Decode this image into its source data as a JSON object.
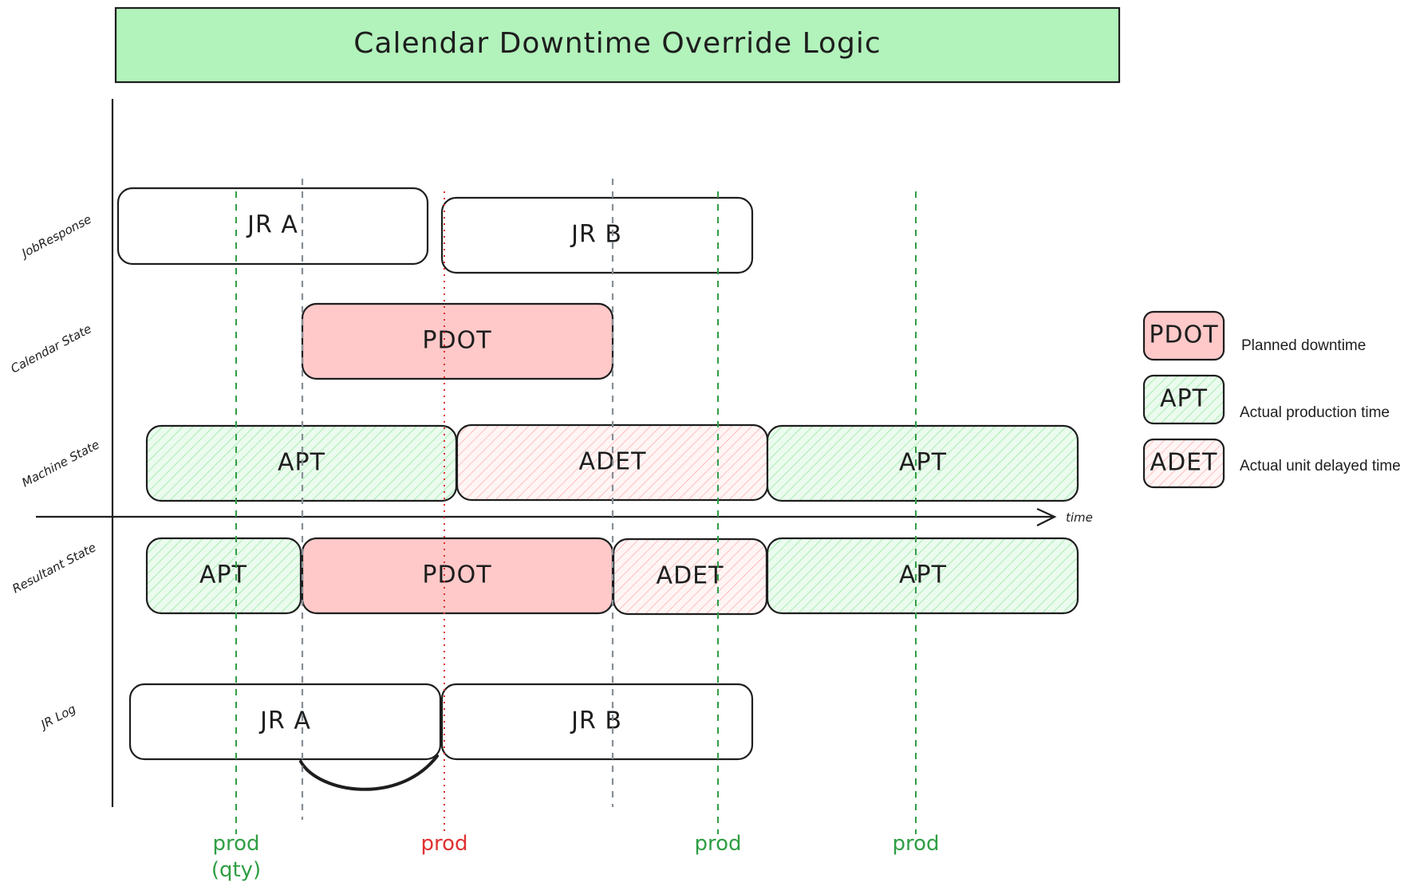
{
  "title": "Calendar Downtime Override Logic",
  "colors": {
    "title_bg": "#b2f2bb",
    "pdot_fill": "#ffc9c9",
    "apt_hatch": "#8ce99a",
    "apt_bg": "#ebfbee",
    "adet_hatch": "#ffa8a8",
    "adet_bg": "#fff5f5",
    "prod_green": "#2f9e44",
    "prod_red": "#e03131",
    "guide_gray": "#868e96"
  },
  "lanes": {
    "job_response": "JobResponse",
    "calendar_state": "Calendar State",
    "machine_state": "Machine State",
    "resultant_state": "Resultant State",
    "jr_log": "JR Log"
  },
  "axis": {
    "time_label": "time"
  },
  "boxes": {
    "jr_a": "JR A",
    "jr_b": "JR B",
    "cal_pdot": "PDOT",
    "m_apt1": "APT",
    "m_adet": "ADET",
    "m_apt2": "APT",
    "r_apt1": "APT",
    "r_pdot": "PDOT",
    "r_adet": "ADET",
    "r_apt2": "APT",
    "log_jr_a": "JR A",
    "log_jr_b": "JR B"
  },
  "prod_markers": {
    "m1_line1": "prod",
    "m1_line2": "(qty)",
    "m2": "prod",
    "m3": "prod",
    "m4": "prod"
  },
  "legend": [
    {
      "code": "PDOT",
      "text": "Planned downtime"
    },
    {
      "code": "APT",
      "text": "Actual production time"
    },
    {
      "code": "ADET",
      "text": "Actual unit delayed time"
    }
  ]
}
